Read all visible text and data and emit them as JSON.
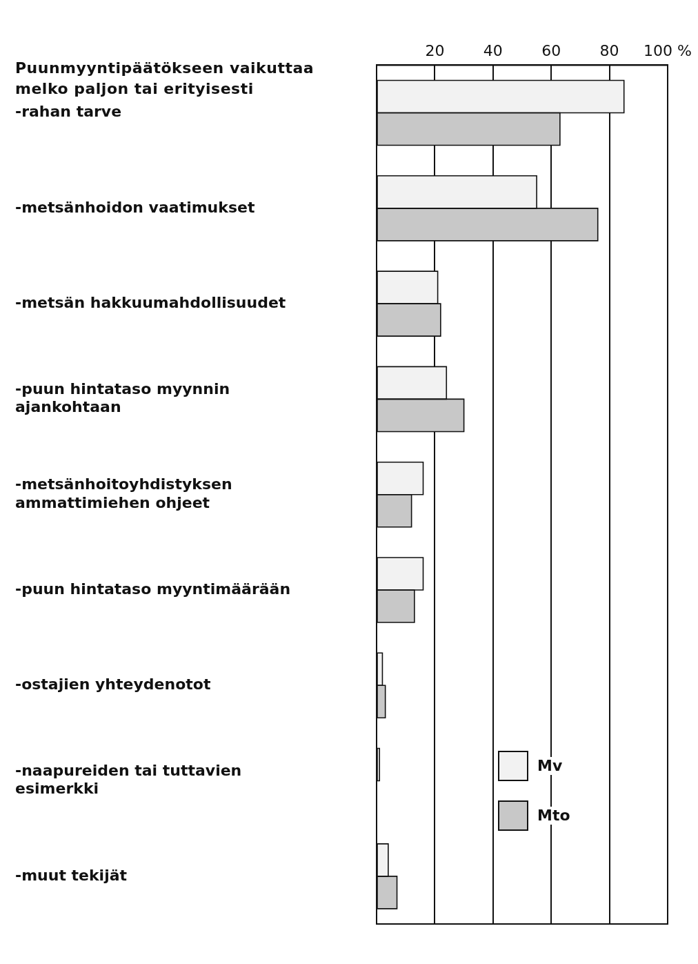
{
  "chart_data": {
    "type": "bar",
    "orientation": "horizontal",
    "title": "Puunmyyntipäätökseen vaikuttaa melko paljon tai erityisesti",
    "categories": [
      "-rahan tarve",
      "-metsänhoidon vaatimukset",
      "-metsän hakkuumahdollisuudet",
      "-puun hintataso myynnin ajankohtaan",
      "-metsänhoitoyhdistyksen ammattimiehen ohjeet",
      "-puun hintataso myyntimäärään",
      "-ostajien yhteydenotot",
      "-naapureiden tai tuttavien esimerkki",
      "-muut tekijät"
    ],
    "series": [
      {
        "name": "Mv",
        "color": "#f2f2f2",
        "values": [
          85,
          55,
          21,
          24,
          16,
          16,
          2,
          1,
          4
        ]
      },
      {
        "name": "Mto",
        "color": "#c8c8c8",
        "values": [
          63,
          76,
          22,
          30,
          12,
          13,
          3,
          null,
          7
        ]
      }
    ],
    "xlim": [
      0,
      100
    ],
    "xticks": [
      {
        "value": 0,
        "label": null
      },
      20,
      40,
      60,
      80,
      {
        "value": 100,
        "label": "100 %"
      }
    ],
    "grid": "x",
    "legend": "bottom right"
  }
}
